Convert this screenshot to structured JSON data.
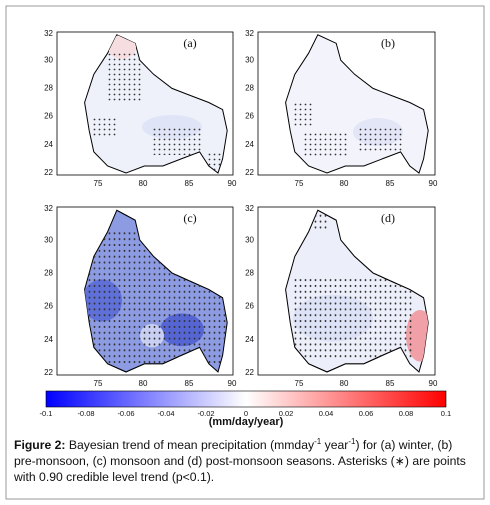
{
  "figure": {
    "panels": [
      {
        "label": "(a)"
      },
      {
        "label": "(b)"
      },
      {
        "label": "(c)"
      },
      {
        "label": "(d)"
      }
    ],
    "x_ticks": [
      "75",
      "80",
      "85",
      "90"
    ],
    "y_ticks": [
      "22",
      "24",
      "26",
      "28",
      "30",
      "32"
    ],
    "colorbar": {
      "ticks": [
        "-0.1",
        "-0.08",
        "-0.06",
        "-0.04",
        "-0.02",
        "0",
        "0.02",
        "0.04",
        "0.06",
        "0.08",
        "0.1"
      ],
      "label": "(mm/day/year)"
    },
    "caption": {
      "number": "Figure 2:",
      "part1": " Bayesian trend of mean precipitation (mmday",
      "sup1": "-1",
      "part2": " year",
      "sup2": "-1",
      "part3": ") for (a) winter, (b) pre-monsoon, (c) monsoon and (d) post-monsoon seasons. Asterisks (∗) are points with 0.90 credible level trend (p<0.1)."
    }
  }
}
